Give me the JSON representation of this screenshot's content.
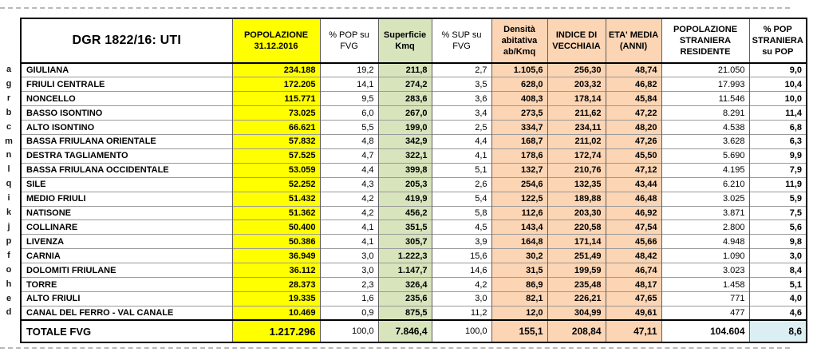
{
  "table": {
    "title": "DGR 1822/16: UTI",
    "headers": [
      "POPOLAZIONE\n31.12.2016",
      "% POP su\nFVG",
      "Superficie\nKmq",
      "% SUP su\nFVG",
      "Densità\nabitativa\nab/Kmq",
      "INDICE DI\nVECCHIAIA",
      "ETA' MEDIA\n(ANNI)",
      "POPOLAZIONE\nSTRANIERA\nRESIDENTE",
      "% POP\nSTRANIERA\nsu POP"
    ],
    "rows": [
      {
        "letter": "a",
        "name": "GIULIANA",
        "values": [
          "234.188",
          "19,2",
          "211,8",
          "2,7",
          "1.105,6",
          "256,30",
          "48,74",
          "21.050",
          "9,0"
        ]
      },
      {
        "letter": "g",
        "name": "FRIULI CENTRALE",
        "values": [
          "172.205",
          "14,1",
          "274,2",
          "3,5",
          "628,0",
          "203,32",
          "46,82",
          "17.993",
          "10,4"
        ]
      },
      {
        "letter": "r",
        "name": "NONCELLO",
        "values": [
          "115.771",
          "9,5",
          "283,6",
          "3,6",
          "408,3",
          "178,14",
          "45,84",
          "11.546",
          "10,0"
        ]
      },
      {
        "letter": "b",
        "name": "BASSO ISONTINO",
        "values": [
          "73.025",
          "6,0",
          "267,0",
          "3,4",
          "273,5",
          "211,62",
          "47,22",
          "8.291",
          "11,4"
        ]
      },
      {
        "letter": "c",
        "name": "ALTO ISONTINO",
        "values": [
          "66.621",
          "5,5",
          "199,0",
          "2,5",
          "334,7",
          "234,11",
          "48,20",
          "4.538",
          "6,8"
        ]
      },
      {
        "letter": "m",
        "name": "BASSA FRIULANA ORIENTALE",
        "values": [
          "57.832",
          "4,8",
          "342,9",
          "4,4",
          "168,7",
          "211,02",
          "47,26",
          "3.628",
          "6,3"
        ]
      },
      {
        "letter": "n",
        "name": "DESTRA TAGLIAMENTO",
        "values": [
          "57.525",
          "4,7",
          "322,1",
          "4,1",
          "178,6",
          "172,74",
          "45,50",
          "5.690",
          "9,9"
        ]
      },
      {
        "letter": "l",
        "name": "BASSA FRIULANA OCCIDENTALE",
        "values": [
          "53.059",
          "4,4",
          "399,8",
          "5,1",
          "132,7",
          "210,76",
          "47,12",
          "4.195",
          "7,9"
        ]
      },
      {
        "letter": "q",
        "name": "SILE",
        "values": [
          "52.252",
          "4,3",
          "205,3",
          "2,6",
          "254,6",
          "132,35",
          "43,44",
          "6.210",
          "11,9"
        ]
      },
      {
        "letter": "i",
        "name": "MEDIO FRIULI",
        "values": [
          "51.432",
          "4,2",
          "419,9",
          "5,4",
          "122,5",
          "189,88",
          "46,48",
          "3.025",
          "5,9"
        ]
      },
      {
        "letter": "k",
        "name": "NATISONE",
        "values": [
          "51.362",
          "4,2",
          "456,2",
          "5,8",
          "112,6",
          "203,30",
          "46,92",
          "3.871",
          "7,5"
        ]
      },
      {
        "letter": "j",
        "name": "COLLINARE",
        "values": [
          "50.400",
          "4,1",
          "351,5",
          "4,5",
          "143,4",
          "220,58",
          "47,54",
          "2.800",
          "5,6"
        ]
      },
      {
        "letter": "p",
        "name": "LIVENZA",
        "values": [
          "50.386",
          "4,1",
          "305,7",
          "3,9",
          "164,8",
          "171,14",
          "45,66",
          "4.948",
          "9,8"
        ]
      },
      {
        "letter": "f",
        "name": "CARNIA",
        "values": [
          "36.949",
          "3,0",
          "1.222,3",
          "15,6",
          "30,2",
          "251,49",
          "48,42",
          "1.090",
          "3,0"
        ]
      },
      {
        "letter": "o",
        "name": "DOLOMITI FRIULANE",
        "values": [
          "36.112",
          "3,0",
          "1.147,7",
          "14,6",
          "31,5",
          "199,59",
          "46,74",
          "3.023",
          "8,4"
        ]
      },
      {
        "letter": "h",
        "name": "TORRE",
        "values": [
          "28.373",
          "2,3",
          "326,4",
          "4,2",
          "86,9",
          "235,48",
          "48,17",
          "1.458",
          "5,1"
        ]
      },
      {
        "letter": "e",
        "name": "ALTO FRIULI",
        "values": [
          "19.335",
          "1,6",
          "235,6",
          "3,0",
          "82,1",
          "226,21",
          "47,65",
          "771",
          "4,0"
        ]
      },
      {
        "letter": "d",
        "name": "CANAL DEL FERRO - VAL CANALE",
        "values": [
          "10.469",
          "0,9",
          "875,5",
          "11,2",
          "12,0",
          "304,99",
          "49,61",
          "477",
          "4,6"
        ]
      }
    ],
    "total": {
      "label": "TOTALE FVG",
      "values": [
        "1.217.296",
        "100,0",
        "7.846,4",
        "100,0",
        "155,1",
        "208,84",
        "47,11",
        "104.604",
        "8,6"
      ]
    }
  },
  "colors": {
    "population_column": "#FFFF00",
    "surface_column": "#D8E4BC",
    "density_age_columns": "#FBD5B4",
    "total_foreign_pct_cell": "#DAEEF3",
    "outer_border": "#000000",
    "grid_vertical": "#5f5f5f",
    "grid_horizontal": "#9a9a9a"
  }
}
